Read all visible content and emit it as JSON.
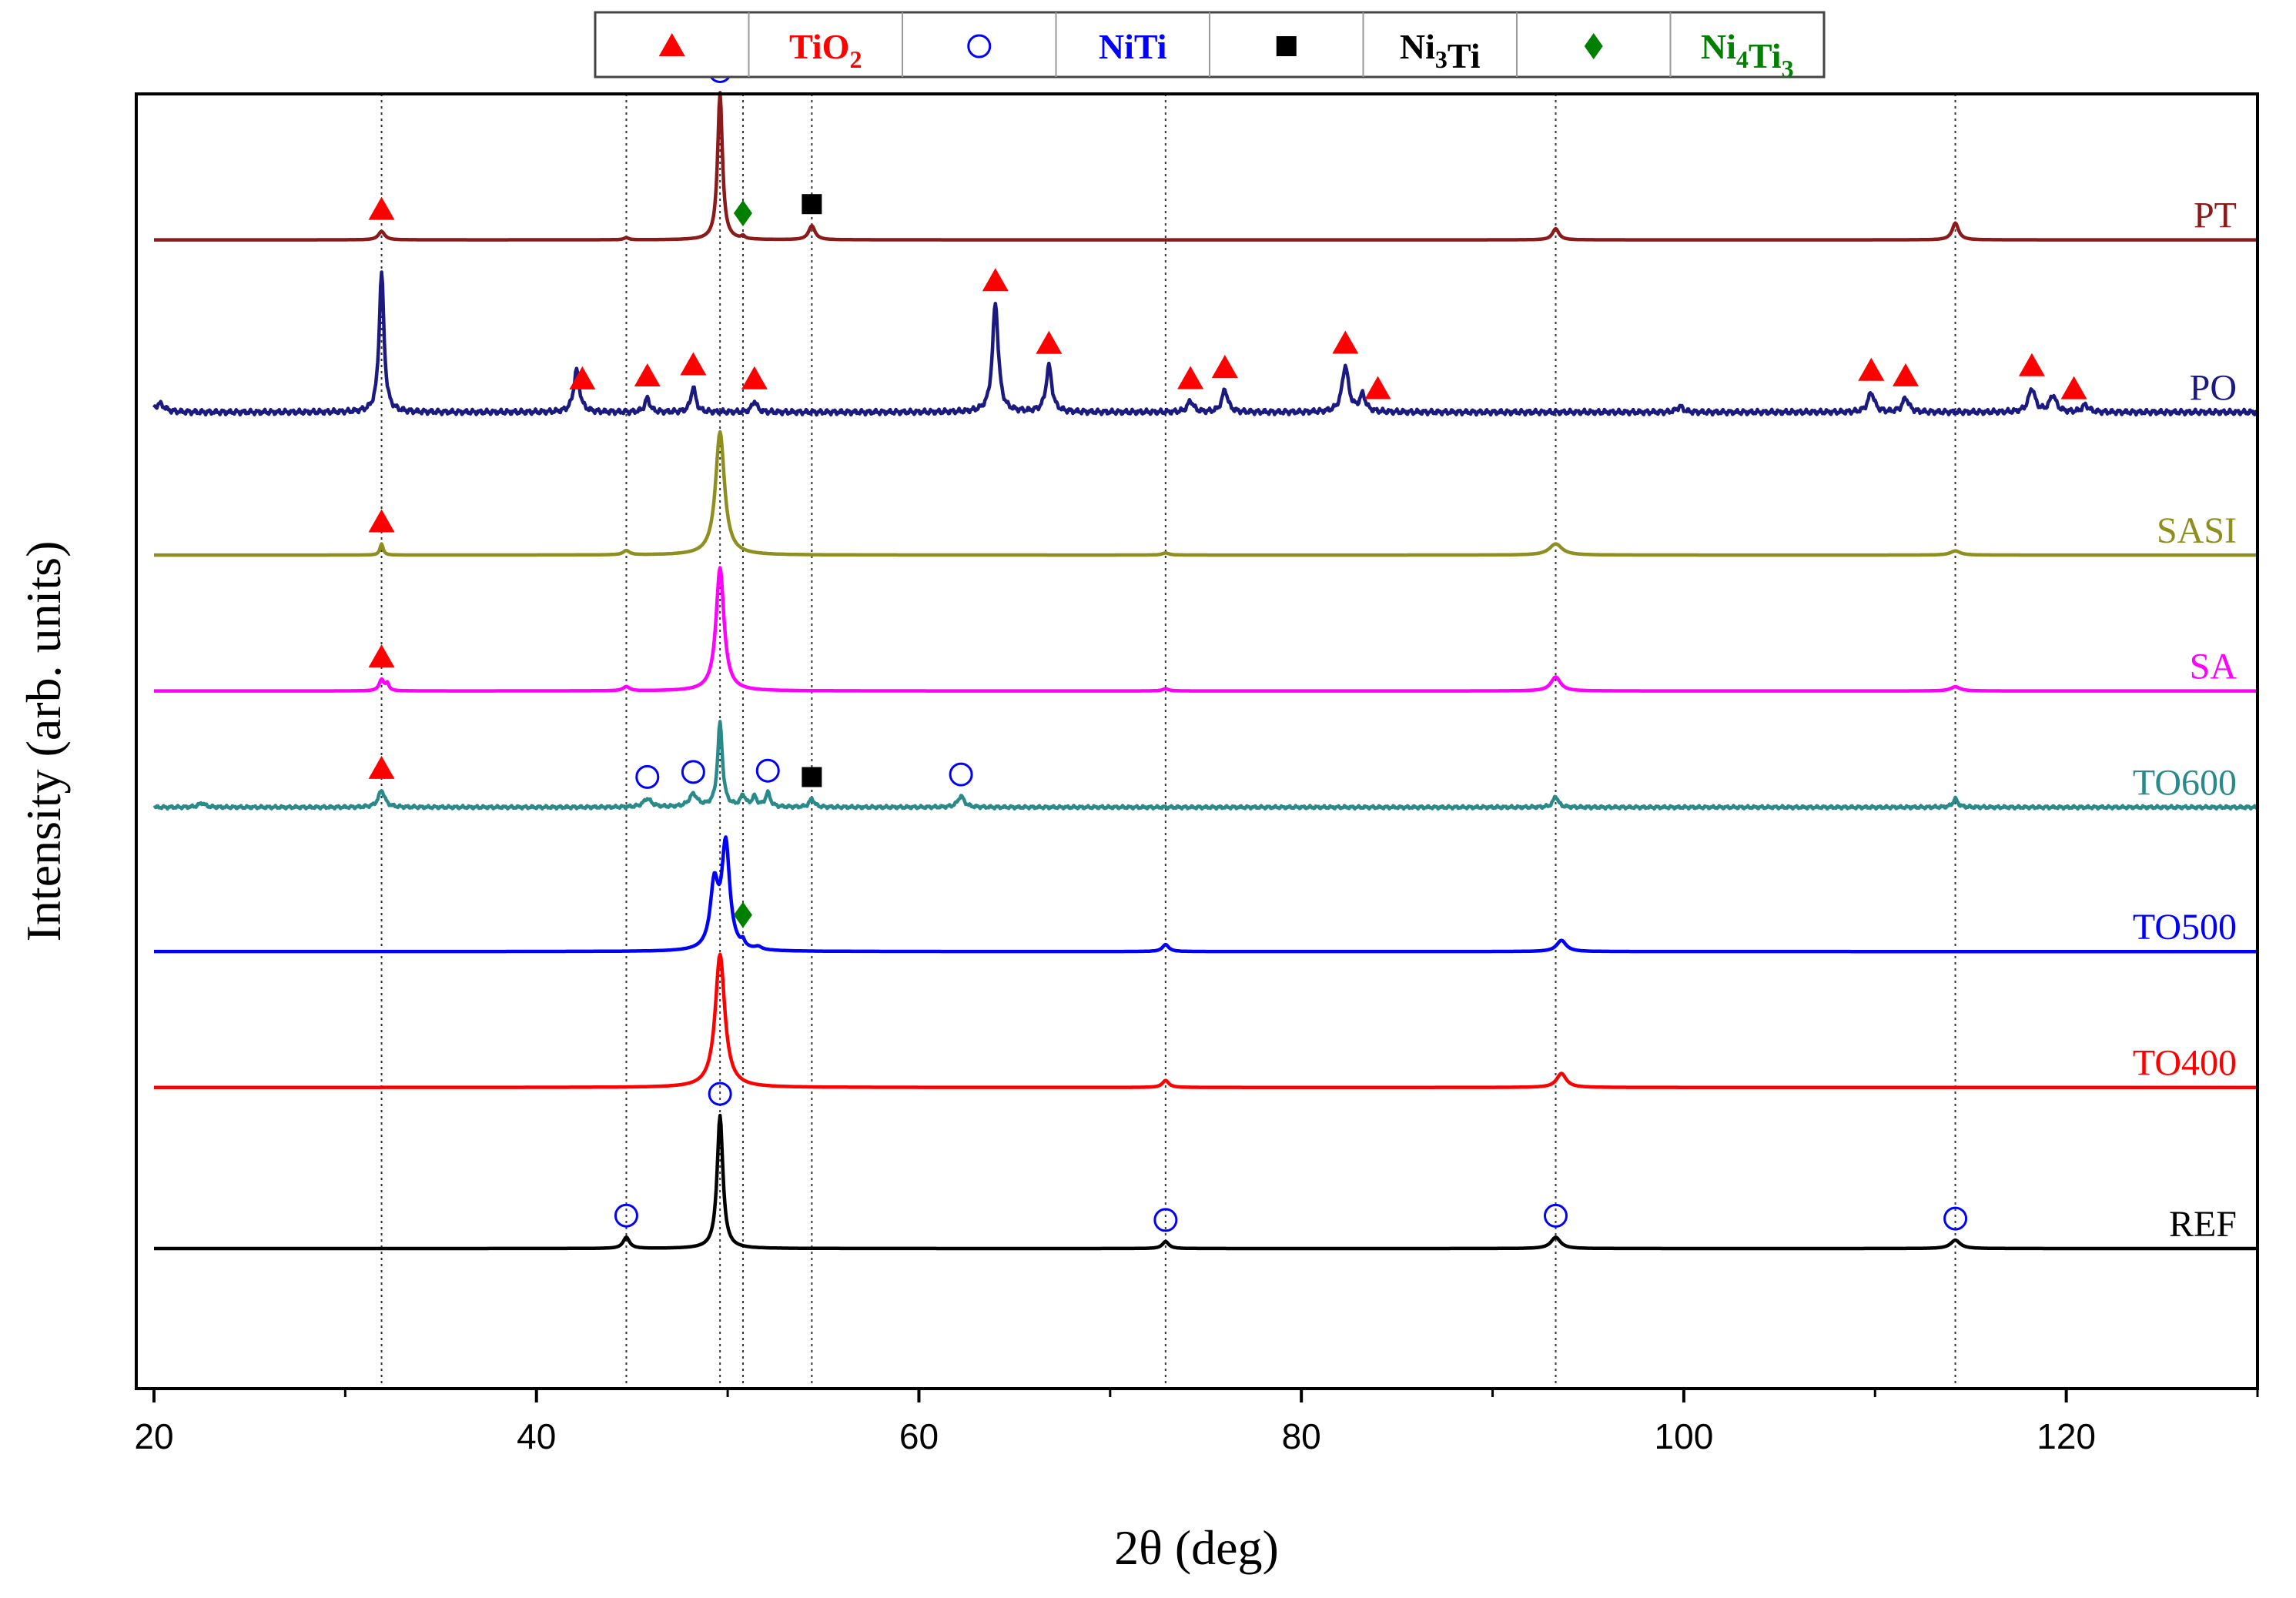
{
  "chart_data": {
    "type": "line",
    "title": "",
    "xlabel": "2θ (deg)",
    "ylabel": "Intensity (arb. units)",
    "xlim": [
      20,
      130
    ],
    "x_ticks": [
      20,
      40,
      60,
      80,
      100,
      120
    ],
    "x_tick_labels": [
      "20",
      "40",
      "60",
      "80",
      "100",
      "120"
    ],
    "x_minor_ticks": [
      30,
      50,
      70,
      90,
      110,
      130
    ],
    "ylim": [
      0,
      9.3
    ],
    "y_ticks": [],
    "grid": false,
    "reference_lines_x": [
      31.9,
      44.7,
      49.6,
      50.8,
      54.4,
      72.9,
      93.3,
      114.2
    ],
    "legend_placement": "top-center",
    "legend": [
      {
        "phase": "TiO2",
        "base": "TiO",
        "subscripts": [
          "2"
        ],
        "label_parts": [
          {
            "t": "TiO"
          },
          {
            "t": "2",
            "sub": true
          }
        ],
        "marker": "triangle",
        "color": "#ff0000"
      },
      {
        "phase": "NiTi",
        "base": "NiTi",
        "subscripts": [],
        "label_parts": [
          {
            "t": "NiTi"
          }
        ],
        "marker": "circle",
        "color": "#0000ff"
      },
      {
        "phase": "Ni3Ti",
        "base": "NiTi",
        "subscripts": [
          "3"
        ],
        "label_parts": [
          {
            "t": "Ni"
          },
          {
            "t": "3",
            "sub": true
          },
          {
            "t": "Ti"
          }
        ],
        "marker": "square",
        "color": "#000000"
      },
      {
        "phase": "Ni4Ti3",
        "base": "NiTi",
        "subscripts": [
          "4",
          "3"
        ],
        "label_parts": [
          {
            "t": "Ni"
          },
          {
            "t": "4",
            "sub": true
          },
          {
            "t": "Ti"
          },
          {
            "t": "3",
            "sub": true
          }
        ],
        "marker": "diamond",
        "color": "#008000"
      }
    ],
    "series": [
      {
        "name": "PT",
        "color": "#8b1a1a",
        "baseline": 8.2,
        "noise": 0.0,
        "peaks": [
          [
            31.9,
            0.06,
            0.2
          ],
          [
            44.7,
            0.015,
            0.15
          ],
          [
            49.6,
            1.05,
            0.15
          ],
          [
            50.8,
            0.02,
            0.1
          ],
          [
            54.4,
            0.1,
            0.2
          ],
          [
            93.3,
            0.08,
            0.2
          ],
          [
            114.2,
            0.12,
            0.2
          ]
        ]
      },
      {
        "name": "PO",
        "color": "#1a1a80",
        "baseline": 6.97,
        "noise": 0.02,
        "peaks": [
          [
            20.3,
            0.06,
            0.3
          ],
          [
            31.9,
            1.0,
            0.15
          ],
          [
            42.1,
            0.3,
            0.18
          ],
          [
            45.8,
            0.1,
            0.15
          ],
          [
            48.2,
            0.18,
            0.15
          ],
          [
            51.4,
            0.08,
            0.15
          ],
          [
            64.0,
            0.78,
            0.18
          ],
          [
            66.8,
            0.33,
            0.18
          ],
          [
            74.2,
            0.08,
            0.18
          ],
          [
            76.0,
            0.16,
            0.18
          ],
          [
            82.3,
            0.33,
            0.2
          ],
          [
            83.2,
            0.12,
            0.18
          ],
          [
            99.8,
            0.04,
            0.2
          ],
          [
            109.8,
            0.14,
            0.2
          ],
          [
            111.6,
            0.1,
            0.2
          ],
          [
            118.2,
            0.17,
            0.2
          ],
          [
            119.3,
            0.12,
            0.2
          ],
          [
            121.0,
            0.05,
            0.2
          ]
        ]
      },
      {
        "name": "SASI",
        "color": "#8f8f20",
        "baseline": 5.95,
        "noise": 0.0,
        "peaks": [
          [
            31.9,
            0.08,
            0.1
          ],
          [
            44.7,
            0.03,
            0.2
          ],
          [
            49.6,
            0.88,
            0.28
          ],
          [
            72.9,
            0.015,
            0.2
          ],
          [
            93.3,
            0.08,
            0.4
          ],
          [
            114.2,
            0.03,
            0.3
          ]
        ]
      },
      {
        "name": "SA",
        "color": "#ff00ff",
        "baseline": 4.98,
        "noise": 0.0,
        "peaks": [
          [
            31.9,
            0.08,
            0.15
          ],
          [
            32.2,
            0.05,
            0.1
          ],
          [
            44.7,
            0.03,
            0.2
          ],
          [
            49.6,
            0.88,
            0.25
          ],
          [
            72.9,
            0.015,
            0.2
          ],
          [
            93.3,
            0.1,
            0.3
          ],
          [
            114.2,
            0.03,
            0.3
          ]
        ]
      },
      {
        "name": "TO600",
        "color": "#2a8a8a",
        "baseline": 4.15,
        "noise": 0.012,
        "peaks": [
          [
            22.5,
            0.03,
            0.2
          ],
          [
            31.9,
            0.12,
            0.2
          ],
          [
            45.8,
            0.06,
            0.25
          ],
          [
            48.2,
            0.09,
            0.25
          ],
          [
            49.6,
            0.6,
            0.15
          ],
          [
            50.8,
            0.08,
            0.15
          ],
          [
            51.4,
            0.07,
            0.15
          ],
          [
            52.1,
            0.1,
            0.15
          ],
          [
            54.4,
            0.06,
            0.15
          ],
          [
            62.2,
            0.08,
            0.2
          ],
          [
            93.3,
            0.08,
            0.15
          ],
          [
            114.2,
            0.06,
            0.15
          ]
        ]
      },
      {
        "name": "TO500",
        "color": "#0000ff",
        "baseline": 3.12,
        "noise": 0.0,
        "peaks": [
          [
            49.3,
            0.45,
            0.25
          ],
          [
            49.9,
            0.75,
            0.25
          ],
          [
            50.8,
            0.04,
            0.1
          ],
          [
            51.6,
            0.02,
            0.2
          ],
          [
            72.9,
            0.05,
            0.2
          ],
          [
            93.6,
            0.08,
            0.3
          ]
        ]
      },
      {
        "name": "TO400",
        "color": "#ff0000",
        "baseline": 2.15,
        "noise": 0.0,
        "peaks": [
          [
            49.6,
            0.95,
            0.3
          ],
          [
            72.9,
            0.05,
            0.2
          ],
          [
            93.6,
            0.1,
            0.3
          ]
        ]
      },
      {
        "name": "REF",
        "color": "#000000",
        "baseline": 1.0,
        "noise": 0.0,
        "peaks": [
          [
            44.7,
            0.08,
            0.2
          ],
          [
            49.6,
            0.95,
            0.18
          ],
          [
            72.9,
            0.05,
            0.2
          ],
          [
            93.3,
            0.08,
            0.3
          ],
          [
            114.2,
            0.06,
            0.3
          ]
        ]
      }
    ],
    "annotations": [
      {
        "series": "PT",
        "phase": "NiTi",
        "x": 49.6
      },
      {
        "series": "PT",
        "phase": "TiO2",
        "x": 31.9
      },
      {
        "series": "PT",
        "phase": "Ni4Ti3",
        "x": 50.8
      },
      {
        "series": "PT",
        "phase": "Ni3Ti",
        "x": 54.4
      },
      {
        "series": "PO",
        "phase": "TiO2",
        "x": 42.4
      },
      {
        "series": "PO",
        "phase": "TiO2",
        "x": 45.8
      },
      {
        "series": "PO",
        "phase": "TiO2",
        "x": 48.2
      },
      {
        "series": "PO",
        "phase": "TiO2",
        "x": 51.4
      },
      {
        "series": "PO",
        "phase": "TiO2",
        "x": 64.0
      },
      {
        "series": "PO",
        "phase": "TiO2",
        "x": 66.8
      },
      {
        "series": "PO",
        "phase": "TiO2",
        "x": 74.2
      },
      {
        "series": "PO",
        "phase": "TiO2",
        "x": 76.0
      },
      {
        "series": "PO",
        "phase": "TiO2",
        "x": 82.3
      },
      {
        "series": "PO",
        "phase": "TiO2",
        "x": 84.0
      },
      {
        "series": "PO",
        "phase": "TiO2",
        "x": 109.8
      },
      {
        "series": "PO",
        "phase": "TiO2",
        "x": 111.6
      },
      {
        "series": "PO",
        "phase": "TiO2",
        "x": 118.2
      },
      {
        "series": "PO",
        "phase": "TiO2",
        "x": 120.4
      },
      {
        "series": "SASI",
        "phase": "TiO2",
        "x": 31.9
      },
      {
        "series": "SA",
        "phase": "TiO2",
        "x": 31.9
      },
      {
        "series": "TO600",
        "phase": "TiO2",
        "x": 31.9
      },
      {
        "series": "TO600",
        "phase": "NiTi",
        "x": 45.8
      },
      {
        "series": "TO600",
        "phase": "NiTi",
        "x": 48.2
      },
      {
        "series": "TO600",
        "phase": "NiTi",
        "x": 52.1
      },
      {
        "series": "TO600",
        "phase": "Ni3Ti",
        "x": 54.4
      },
      {
        "series": "TO600",
        "phase": "NiTi",
        "x": 62.2
      },
      {
        "series": "TO500",
        "phase": "Ni4Ti3",
        "x": 50.8
      },
      {
        "series": "REF",
        "phase": "NiTi",
        "x": 49.6
      },
      {
        "series": "REF",
        "phase": "NiTi",
        "x": 44.7
      },
      {
        "series": "REF",
        "phase": "NiTi",
        "x": 72.9
      },
      {
        "series": "REF",
        "phase": "NiTi",
        "x": 93.3
      },
      {
        "series": "REF",
        "phase": "NiTi",
        "x": 114.2
      }
    ]
  }
}
